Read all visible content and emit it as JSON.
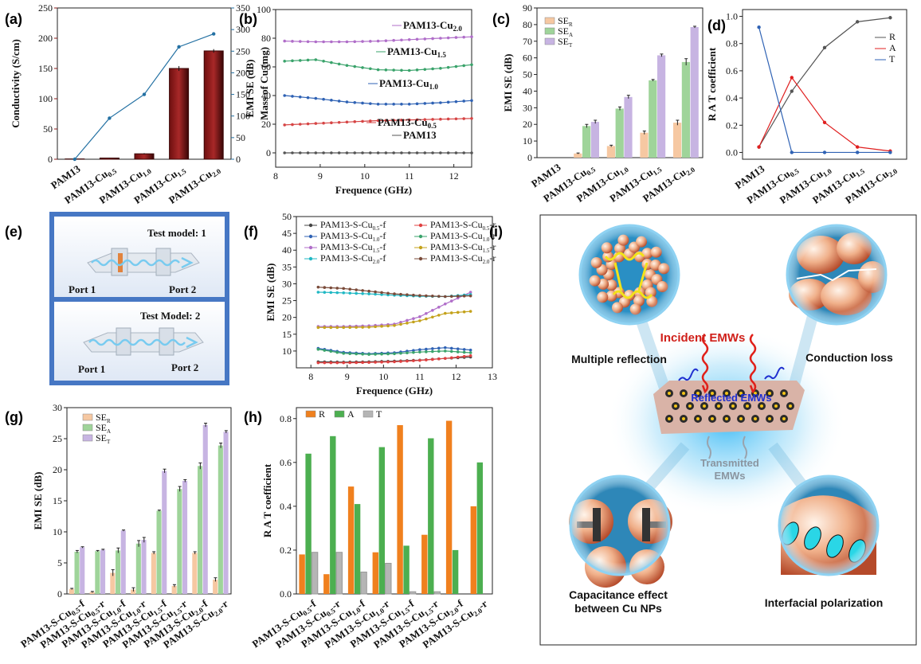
{
  "panel_labels": {
    "a": "(a)",
    "b": "(b)",
    "c": "(c)",
    "d": "(d)",
    "e": "(e)",
    "f": "(f)",
    "g": "(g)",
    "h": "(h)",
    "i": "(i)"
  },
  "chart_data": [
    {
      "id": "a",
      "type": "bar",
      "categories": [
        "PAM13",
        "PAM13-Cu0.5",
        "PAM13-Cu1.0",
        "PAM13-Cu1.5",
        "PAM13-Cu2.0"
      ],
      "values": [
        0.5,
        2,
        9,
        150,
        179
      ],
      "errors": [
        0,
        0.5,
        1,
        4,
        3
      ],
      "ylabel": "Conductivity (S/cm)",
      "ylim": [
        0,
        250
      ],
      "yticks": [
        0,
        50,
        100,
        150,
        200,
        250
      ],
      "y2label": "Mass of Cu (mg)",
      "y2lim": [
        0,
        350
      ],
      "y2ticks": [
        0,
        50,
        100,
        150,
        200,
        250,
        300,
        350
      ],
      "line_values": [
        0,
        95,
        150,
        260,
        290
      ],
      "bar_color": "#8b1a1a",
      "line_color": "#2471a3"
    },
    {
      "id": "b",
      "type": "line",
      "xlabel": "Frequence (GHz)",
      "ylabel": "EMI SE (dB)",
      "xlim": [
        8,
        12.4
      ],
      "xticks": [
        8,
        9,
        10,
        11,
        12
      ],
      "ylim": [
        -10,
        100
      ],
      "yticks": [
        0,
        20,
        40,
        60,
        80,
        100
      ],
      "series": [
        {
          "name": "PAM13-Cu2.0",
          "color": "#b06ec9",
          "values": [
            78,
            77.5,
            77.5,
            78,
            79,
            80,
            81
          ]
        },
        {
          "name": "PAM13-Cu1.5",
          "color": "#3aa36b",
          "values": [
            64,
            65,
            61,
            58,
            57.5,
            59,
            61.5
          ]
        },
        {
          "name": "PAM13-Cu1.0",
          "color": "#2f62b4",
          "values": [
            40,
            38,
            35.5,
            34,
            34,
            35,
            36.5
          ]
        },
        {
          "name": "PAM13-Cu0.5",
          "color": "#d64545",
          "values": [
            19.5,
            20.5,
            21.5,
            22.5,
            23,
            23.5,
            24
          ]
        },
        {
          "name": "PAM13",
          "color": "#555555",
          "values": [
            0,
            0,
            0,
            0,
            0,
            0,
            0
          ]
        }
      ],
      "x": [
        8.2,
        8.9,
        9.6,
        10.3,
        11,
        11.7,
        12.4
      ]
    },
    {
      "id": "c",
      "type": "bar",
      "categories": [
        "PAM13",
        "PAM13-Cu0.5",
        "PAM13-Cu1.0",
        "PAM13-Cu1.5",
        "PAM13-Cu2.0"
      ],
      "ylabel": "EMI SE (dB)",
      "ylim": [
        0,
        90
      ],
      "yticks": [
        0,
        10,
        20,
        30,
        40,
        50,
        60,
        70,
        80,
        90
      ],
      "series": [
        {
          "name": "SER",
          "color": "#f6c8a2",
          "values": [
            0,
            2.5,
            7,
            15,
            21
          ],
          "errors": [
            0,
            0.3,
            0.5,
            1,
            1.5
          ]
        },
        {
          "name": "SEA",
          "color": "#9fd49a",
          "values": [
            0,
            19,
            29.5,
            46.5,
            57.5
          ],
          "errors": [
            0,
            1,
            1,
            0.5,
            2
          ]
        },
        {
          "name": "SET",
          "color": "#c7b4e2",
          "values": [
            0,
            21.5,
            36.5,
            61.5,
            78.5
          ],
          "errors": [
            0,
            1,
            1,
            0.8,
            0.5
          ]
        }
      ]
    },
    {
      "id": "d",
      "type": "line",
      "categories": [
        "PAM13",
        "PAM13-Cu0.5",
        "PAM13-Cu1.0",
        "PAM13-Cu1.5",
        "PAM13-Cu2.0"
      ],
      "ylabel": "R A T coefficient",
      "ylim": [
        -0.05,
        1.05
      ],
      "yticks": [
        0,
        0.2,
        0.4,
        0.6,
        0.8,
        1.0
      ],
      "tick_labels": [
        "0.0",
        "0.2",
        "0.4",
        "0.6",
        "0.8",
        "1.0"
      ],
      "series": [
        {
          "name": "R",
          "color": "#555555",
          "values": [
            0.04,
            0.45,
            0.77,
            0.96,
            0.99
          ]
        },
        {
          "name": "A",
          "color": "#e02020",
          "values": [
            0.04,
            0.55,
            0.22,
            0.04,
            0.01
          ]
        },
        {
          "name": "T",
          "color": "#2f62b4",
          "values": [
            0.92,
            0.0,
            0.0,
            0.0,
            0.0
          ]
        }
      ]
    },
    {
      "id": "f",
      "type": "line",
      "xlabel": "Frequence (GHz)",
      "ylabel": "EMI SE (dB)",
      "xlim": [
        7.6,
        13
      ],
      "xticks": [
        8,
        9,
        10,
        11,
        12,
        13
      ],
      "ylim": [
        5,
        50
      ],
      "yticks": [
        10,
        15,
        20,
        25,
        30,
        35,
        40,
        45,
        50
      ],
      "x": [
        8.2,
        8.9,
        9.6,
        10.3,
        11,
        11.7,
        12.4
      ],
      "series": [
        {
          "name": "PAM13-S-Cu0.5-f",
          "color": "#444444",
          "values": [
            6.8,
            6.7,
            6.8,
            7,
            7.3,
            7.8,
            8.2
          ]
        },
        {
          "name": "PAM13-S-Cu0.5-r",
          "color": "#e04040",
          "values": [
            6.5,
            6.5,
            6.6,
            6.8,
            7.2,
            7.8,
            8.6
          ]
        },
        {
          "name": "PAM13-S-Cu1.0-f",
          "color": "#2f62b4",
          "values": [
            10.8,
            9.6,
            9.2,
            9.5,
            10.4,
            11,
            10.3
          ]
        },
        {
          "name": "PAM13-S-Cu1.0-r",
          "color": "#3aa36b",
          "values": [
            10.5,
            9.3,
            9,
            9.2,
            9.7,
            10,
            9.5
          ]
        },
        {
          "name": "PAM13-S-Cu1.5-f",
          "color": "#b06ec9",
          "values": [
            17.3,
            17.3,
            17.5,
            18,
            20.2,
            24,
            27.5
          ]
        },
        {
          "name": "PAM13-S-Cu1.5-r",
          "color": "#c4a21b",
          "values": [
            17,
            17,
            17.1,
            17.6,
            19,
            21.2,
            21.8
          ]
        },
        {
          "name": "PAM13-S-Cu2.0-f",
          "color": "#20b8c4",
          "values": [
            27.5,
            27.3,
            27,
            26.6,
            26.3,
            26.2,
            26.8
          ]
        },
        {
          "name": "PAM13-S-Cu2.0-r",
          "color": "#7a4b3a",
          "values": [
            29,
            28.6,
            27.8,
            27,
            26.5,
            26.2,
            26.4
          ]
        }
      ]
    },
    {
      "id": "g",
      "type": "bar",
      "categories": [
        "PAM13-S-Cu0.5-f",
        "PAM13-S-Cu0.5-r",
        "PAM13-S-Cu1.0-f",
        "PAM13-S-Cu1.0-r",
        "PAM13-S-Cu1.5-f",
        "PAM13-S-Cu1.5-r",
        "PAM13-S-Cu2.0-f",
        "PAM13-S-Cu2.0-r"
      ],
      "ylabel": "EMI SE (dB)",
      "ylim": [
        0,
        30
      ],
      "yticks": [
        0,
        5,
        10,
        15,
        20,
        25,
        30
      ],
      "series": [
        {
          "name": "SER",
          "color": "#f6c8a2",
          "values": [
            0.8,
            0.3,
            3.4,
            0.7,
            6.6,
            1.3,
            6.6,
            2.3
          ],
          "errors": [
            0.1,
            0.1,
            0.5,
            0.3,
            0.2,
            0.2,
            0.2,
            0.3
          ]
        },
        {
          "name": "SEA",
          "color": "#9fd49a",
          "values": [
            6.8,
            6.9,
            7,
            8.1,
            13.4,
            16.9,
            20.6,
            23.9
          ],
          "errors": [
            0.2,
            0.1,
            0.4,
            0.5,
            0.1,
            0.4,
            0.5,
            0.4
          ]
        },
        {
          "name": "SET",
          "color": "#c7b4e2",
          "values": [
            7.5,
            7.1,
            10.2,
            8.7,
            19.8,
            18.2,
            27.2,
            26.1
          ],
          "errors": [
            0.1,
            0.1,
            0.1,
            0.4,
            0.3,
            0.2,
            0.3,
            0.2
          ]
        }
      ]
    },
    {
      "id": "h",
      "type": "bar",
      "categories": [
        "PAM13-S-Cu0.5-f",
        "PAM13-S-Cu0.5-r",
        "PAM13-S-Cu1.0-f",
        "PAM13-S-Cu1.0-r",
        "PAM13-S-Cu1.5-f",
        "PAM13-S-Cu1.5-r",
        "PAM13-S-Cu2.0-f",
        "PAM13-S-Cu2.0-r"
      ],
      "ylabel": "R A T coefficient",
      "ylim": [
        0,
        0.85
      ],
      "yticks": [
        0,
        0.2,
        0.4,
        0.6,
        0.8
      ],
      "tick_labels": [
        "0.0",
        "0.2",
        "0.4",
        "0.6",
        "0.8"
      ],
      "series": [
        {
          "name": "R",
          "color": "#f0801e",
          "values": [
            0.18,
            0.09,
            0.49,
            0.19,
            0.77,
            0.27,
            0.79,
            0.4
          ]
        },
        {
          "name": "A",
          "color": "#4caf50",
          "values": [
            0.64,
            0.72,
            0.41,
            0.67,
            0.22,
            0.71,
            0.2,
            0.6
          ]
        },
        {
          "name": "T",
          "color": "#b5b5b5",
          "values": [
            0.19,
            0.19,
            0.1,
            0.14,
            0.01,
            0.01,
            0.0,
            0.0
          ]
        }
      ]
    }
  ],
  "panel_e": {
    "model1": "Test model: 1",
    "model2": "Test Model: 2",
    "port1": "Port 1",
    "port2": "Port 2"
  },
  "panel_i": {
    "multiple_reflection": "Multiple reflection",
    "conduction_loss": "Conduction loss",
    "incident": "Incident EMWs",
    "reflected": "Reflected EMWs",
    "transmitted_1": "Transmitted",
    "transmitted_2": "EMWs",
    "capacitance_1": "Capacitance effect",
    "capacitance_2": "between Cu NPs",
    "interfacial": "Interfacial polarization"
  }
}
